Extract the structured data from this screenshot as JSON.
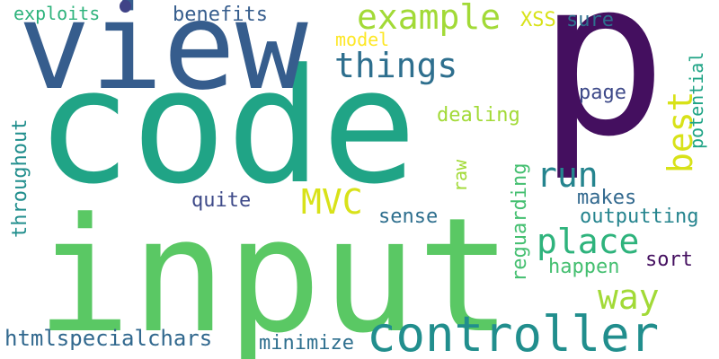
{
  "words": {
    "p": {
      "text": "p",
      "color": "#440f5f"
    },
    "code": {
      "text": "code",
      "color": "#20a486"
    },
    "input": {
      "text": "input",
      "color": "#5ac864"
    },
    "view": {
      "text": "view",
      "color": "#365d8d"
    },
    "controller": {
      "text": "controller",
      "color": "#218e8d"
    },
    "example": {
      "text": "example",
      "color": "#a2da37"
    },
    "things": {
      "text": "things",
      "color": "#2e6f8e"
    },
    "run": {
      "text": "run",
      "color": "#25848e"
    },
    "place": {
      "text": "place",
      "color": "#2eb37c"
    },
    "way": {
      "text": "way",
      "color": "#a2da37"
    },
    "mvc": {
      "text": "MVC",
      "color": "#d8e219"
    },
    "best": {
      "text": "best",
      "color": "#d8e219"
    },
    "htmlspecialchars": {
      "text": "htmlspecialchars",
      "color": "#31688e"
    },
    "exploits": {
      "text": "exploits",
      "color": "#2eb37c"
    },
    "benefits": {
      "text": "benefits",
      "color": "#365d8d"
    },
    "xss": {
      "text": "XSS",
      "color": "#d8e219"
    },
    "sure": {
      "text": "sure",
      "color": "#2e6f8e"
    },
    "model": {
      "text": "model",
      "color": "#fde725"
    },
    "dealing": {
      "text": "dealing",
      "color": "#a2da37"
    },
    "page": {
      "text": "page",
      "color": "#3e4a89"
    },
    "potential": {
      "text": "potential",
      "color": "#20a486"
    },
    "raw": {
      "text": "raw",
      "color": "#a2da37"
    },
    "reguarding": {
      "text": "reguarding",
      "color": "#44bf70"
    },
    "makes": {
      "text": "makes",
      "color": "#31688e"
    },
    "outputting": {
      "text": "outputting",
      "color": "#25848e"
    },
    "quite": {
      "text": "quite",
      "color": "#3e4a89"
    },
    "sense": {
      "text": "sense",
      "color": "#2e6f8e"
    },
    "happen": {
      "text": "happen",
      "color": "#44bf70"
    },
    "sort": {
      "text": "sort",
      "color": "#440f5f"
    },
    "throughout": {
      "text": "throughout",
      "color": "#218e8d"
    },
    "minimize": {
      "text": "minimize",
      "color": "#2e6f8e"
    },
    "dot": {
      "text": "",
      "color": "#404387"
    }
  }
}
